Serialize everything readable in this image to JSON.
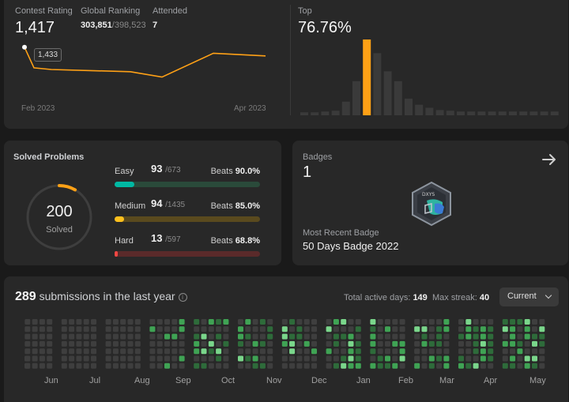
{
  "contest": {
    "rating_label": "Contest Rating",
    "rating": "1,417",
    "ranking_label": "Global Ranking",
    "ranking": "303,851",
    "ranking_total": "/398,523",
    "attended_label": "Attended",
    "attended": "7",
    "tooltip": "1,433",
    "x_start": "Feb 2023",
    "x_end": "Apr 2023",
    "top_label": "Top",
    "top_value": "76.76%"
  },
  "chart_data": [
    {
      "type": "line",
      "x": [
        "Feb 2023",
        "",
        "",
        "",
        "",
        "",
        "",
        "Apr 2023"
      ],
      "values": [
        1433,
        1395,
        1392,
        1390,
        1388,
        1378,
        1422,
        1417
      ],
      "ylim": [
        1360,
        1440
      ],
      "color": "#ffa116"
    },
    {
      "type": "bar",
      "values": [
        4,
        4,
        5,
        6,
        18,
        45,
        100,
        82,
        58,
        45,
        22,
        14,
        10,
        7,
        6,
        5,
        5,
        5,
        5,
        5,
        5,
        5,
        5,
        5,
        5
      ],
      "highlight_index": 6,
      "highlight_color": "#ffa116",
      "bar_color": "#3a3a3a"
    }
  ],
  "solved": {
    "title": "Solved Problems",
    "total": "200",
    "total_label": "Solved",
    "difficulties": [
      {
        "name": "Easy",
        "count": "93",
        "total": "/673",
        "beats_label": "Beats",
        "beats": "90.0%",
        "color": "#00b8a3",
        "track": "#2a4a3a",
        "fraction": 0.138
      },
      {
        "name": "Medium",
        "count": "94",
        "total": "/1435",
        "beats_label": "Beats",
        "beats": "85.0%",
        "color": "#ffc01e",
        "track": "#5a4a1e",
        "fraction": 0.066
      },
      {
        "name": "Hard",
        "count": "13",
        "total": "/597",
        "beats_label": "Beats",
        "beats": "68.8%",
        "color": "#ef4743",
        "track": "#5a2a2a",
        "fraction": 0.022
      }
    ]
  },
  "badges": {
    "label": "Badges",
    "count": "1",
    "recent_label": "Most Recent Badge",
    "recent_name": "50 Days Badge 2022",
    "icon": "arrow-right-icon"
  },
  "submissions": {
    "count": "289",
    "text": "submissions in the last year",
    "active_label": "Total active days:",
    "active": "149",
    "streak_label": "Max streak:",
    "streak": "40",
    "dropdown": "Current",
    "months": [
      "Jun",
      "Jul",
      "Aug",
      "Sep",
      "Oct",
      "Nov",
      "Dec",
      "Jan",
      "Feb",
      "Mar",
      "Apr",
      "May"
    ]
  }
}
